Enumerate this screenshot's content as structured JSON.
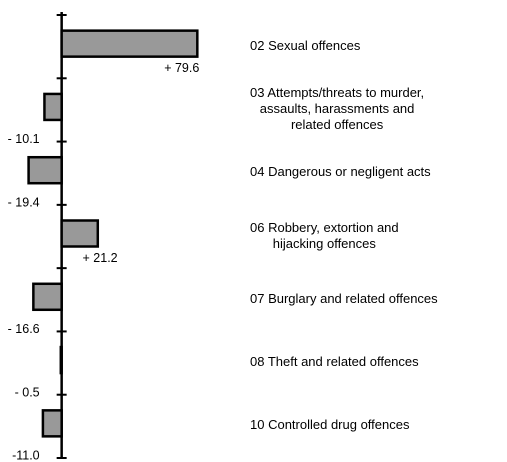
{
  "chart_data": {
    "type": "hbar",
    "categories": [
      "02 Sexual offences",
      "03 Attempts/threats to murder,\nassaults, harassments and\nrelated offences",
      "04 Dangerous or negligent acts",
      "06 Robbery, extortion and\nhijacking offences",
      "07 Burglary and related offences",
      "08 Theft and related offences",
      "10 Controlled drug offences"
    ],
    "values": [
      79.6,
      -10.1,
      -19.4,
      21.2,
      -16.6,
      -0.5,
      -11.0
    ],
    "value_labels": [
      "+ 79.6",
      "- 10.1",
      "- 19.4",
      "+ 21.2",
      "- 16.6",
      "- 0.5",
      "-11.0"
    ],
    "color": "#999999",
    "xlim": [
      -35,
      80
    ]
  }
}
